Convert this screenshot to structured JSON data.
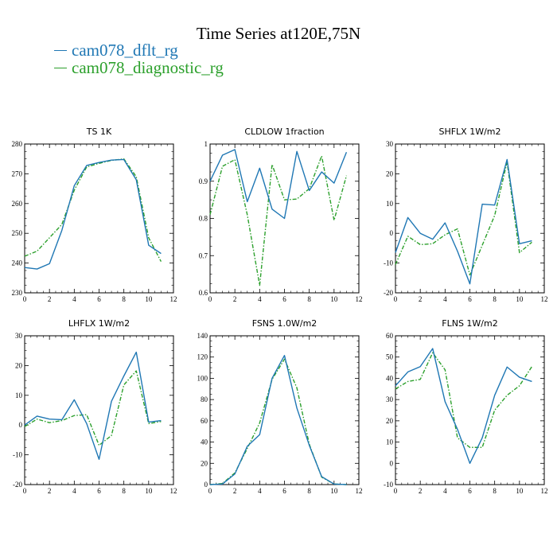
{
  "title": "Time Series at120E,75N",
  "colors": {
    "series1": "#1f77b4",
    "series2": "#2ca02c"
  },
  "legend": [
    {
      "label": "cam078_dflt_rg",
      "color": "#1f77b4"
    },
    {
      "label": "cam078_diagnostic_rg",
      "color": "#2ca02c"
    }
  ],
  "chart_data": [
    {
      "type": "line",
      "title": "TS   1K",
      "xlim": [
        0,
        12
      ],
      "ylim": [
        230,
        280
      ],
      "xticks": [
        0,
        2,
        4,
        6,
        8,
        10,
        12
      ],
      "yticks": [
        230,
        240,
        250,
        260,
        270,
        280
      ],
      "x": [
        0,
        1,
        2,
        3,
        4,
        5,
        6,
        7,
        8,
        9,
        10,
        11
      ],
      "series": [
        {
          "name": "cam078_dflt_rg",
          "values": [
            238.5,
            238.0,
            239.8,
            251.0,
            266.0,
            272.8,
            273.8,
            274.6,
            274.8,
            268.0,
            246.0,
            243.2
          ]
        },
        {
          "name": "cam078_diagnostic_rg",
          "values": [
            242.3,
            244.0,
            248.5,
            253.0,
            264.5,
            272.3,
            273.5,
            274.5,
            275.0,
            269.0,
            248.5,
            240.5
          ]
        }
      ]
    },
    {
      "type": "line",
      "title": "CLDLOW   1fraction",
      "xlim": [
        0,
        12
      ],
      "ylim": [
        0.6,
        1.0
      ],
      "xticks": [
        0,
        2,
        4,
        6,
        8,
        10,
        12
      ],
      "yticks": [
        0.6,
        0.7,
        0.8,
        0.9,
        1.0
      ],
      "x": [
        0,
        1,
        2,
        3,
        4,
        5,
        6,
        7,
        8,
        9,
        10,
        11
      ],
      "series": [
        {
          "name": "cam078_dflt_rg",
          "values": [
            0.9,
            0.97,
            0.985,
            0.845,
            0.935,
            0.825,
            0.8,
            0.98,
            0.875,
            0.925,
            0.895,
            0.978
          ]
        },
        {
          "name": "cam078_diagnostic_rg",
          "values": [
            0.81,
            0.94,
            0.958,
            0.81,
            0.62,
            0.945,
            0.85,
            0.852,
            0.88,
            0.968,
            0.795,
            0.915
          ]
        }
      ]
    },
    {
      "type": "line",
      "title": "SHFLX   1W/m2",
      "xlim": [
        0,
        12
      ],
      "ylim": [
        -20,
        30
      ],
      "xticks": [
        0,
        2,
        4,
        6,
        8,
        10,
        12
      ],
      "yticks": [
        -20,
        -10,
        0,
        10,
        20,
        30
      ],
      "x": [
        0,
        1,
        2,
        3,
        4,
        5,
        6,
        7,
        8,
        9,
        10,
        11
      ],
      "series": [
        {
          "name": "cam078_dflt_rg",
          "values": [
            -6.5,
            5.3,
            0.0,
            -2.0,
            3.5,
            -6.0,
            -17.0,
            9.8,
            9.5,
            24.8,
            -3.5,
            -2.5
          ]
        },
        {
          "name": "cam078_diagnostic_rg",
          "values": [
            -10.5,
            -1.0,
            -3.8,
            -3.5,
            -0.5,
            1.5,
            -14.0,
            -4.0,
            6.0,
            24.0,
            -6.5,
            -3.0
          ]
        }
      ]
    },
    {
      "type": "line",
      "title": "LHFLX   1W/m2",
      "xlim": [
        0,
        12
      ],
      "ylim": [
        -20,
        30
      ],
      "xticks": [
        0,
        2,
        4,
        6,
        8,
        10,
        12
      ],
      "yticks": [
        -20,
        -10,
        0,
        10,
        20,
        30
      ],
      "x": [
        0,
        1,
        2,
        3,
        4,
        5,
        6,
        7,
        8,
        9,
        10,
        11
      ],
      "series": [
        {
          "name": "cam078_dflt_rg",
          "values": [
            0.0,
            3.0,
            2.0,
            1.8,
            8.5,
            0.5,
            -11.5,
            8.0,
            16.5,
            24.5,
            1.0,
            1.5
          ]
        },
        {
          "name": "cam078_diagnostic_rg",
          "values": [
            -0.5,
            2.0,
            0.8,
            1.5,
            3.2,
            3.5,
            -6.8,
            -3.5,
            13.5,
            18.2,
            0.5,
            1.2
          ]
        }
      ]
    },
    {
      "type": "line",
      "title": "FSNS   1.0W/m2",
      "xlim": [
        0,
        12
      ],
      "ylim": [
        0,
        140
      ],
      "xticks": [
        0,
        2,
        4,
        6,
        8,
        10,
        12
      ],
      "yticks": [
        0,
        20,
        40,
        60,
        80,
        100,
        120,
        140
      ],
      "x": [
        0,
        1,
        2,
        3,
        4,
        5,
        6,
        7,
        8,
        9,
        10,
        11
      ],
      "series": [
        {
          "name": "cam078_dflt_rg",
          "values": [
            0.0,
            0.5,
            10.0,
            36.0,
            47.0,
            100.0,
            121.5,
            72.0,
            37.0,
            7.5,
            0.5,
            0.0
          ]
        },
        {
          "name": "cam078_diagnostic_rg",
          "values": [
            0.0,
            1.0,
            11.0,
            34.0,
            58.0,
            99.0,
            118.0,
            91.0,
            38.0,
            7.0,
            0.5,
            0.0
          ]
        }
      ]
    },
    {
      "type": "line",
      "title": "FLNS   1W/m2",
      "xlim": [
        0,
        12
      ],
      "ylim": [
        -10,
        60
      ],
      "xticks": [
        0,
        2,
        4,
        6,
        8,
        10,
        12
      ],
      "yticks": [
        -10,
        0,
        10,
        20,
        30,
        40,
        50,
        60
      ],
      "x": [
        0,
        1,
        2,
        3,
        4,
        5,
        6,
        7,
        8,
        9,
        10,
        11
      ],
      "series": [
        {
          "name": "cam078_dflt_rg",
          "values": [
            36.5,
            43.0,
            45.5,
            54.0,
            29.0,
            16.0,
            0.0,
            12.0,
            32.0,
            45.3,
            40.5,
            38.5
          ]
        },
        {
          "name": "cam078_diagnostic_rg",
          "values": [
            35.0,
            38.5,
            39.5,
            52.0,
            44.0,
            12.0,
            7.5,
            7.5,
            25.0,
            32.0,
            36.5,
            45.5
          ]
        }
      ]
    }
  ]
}
